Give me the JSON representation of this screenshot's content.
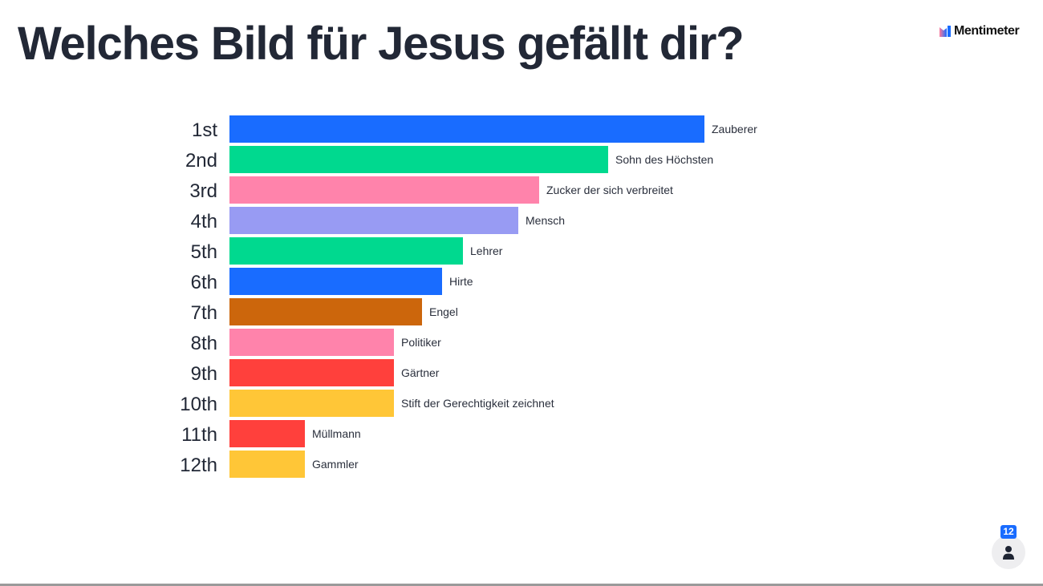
{
  "header": {
    "title": "Welches Bild für Jesus gefällt dir?",
    "brand": "Mentimeter"
  },
  "participants": {
    "count": "12",
    "icon": "person-icon"
  },
  "colors": {
    "blue": "#196cff",
    "green": "#00d98f",
    "pink": "#ff83ab",
    "lavender": "#989bf3",
    "orange": "#cc660c",
    "red": "#ff403c",
    "yellow": "#ffc637"
  },
  "chart_data": {
    "type": "bar",
    "orientation": "horizontal",
    "title": "Welches Bild für Jesus gefällt dir?",
    "xlabel": "",
    "ylabel": "",
    "value_units": "relative score (top = 100)",
    "xlim": [
      0,
      100
    ],
    "grid": false,
    "legend": "none",
    "categories": [
      "1st",
      "2nd",
      "3rd",
      "4th",
      "5th",
      "6th",
      "7th",
      "8th",
      "9th",
      "10th",
      "11th",
      "12th"
    ],
    "labels": [
      "Zauberer",
      "Sohn des Höchsten",
      "Zucker der sich verbreitet",
      "Mensch",
      "Lehrer",
      "Hirte",
      "Engel",
      "Politiker",
      "Gärtner",
      "Stift der Gerechtigkeit zeichnet",
      "Müllmann",
      "Gammler"
    ],
    "values": [
      100,
      79.7,
      65.2,
      60.8,
      49.2,
      44.8,
      40.5,
      34.6,
      34.6,
      34.6,
      15.9,
      15.9
    ],
    "colors": [
      "#196cff",
      "#00d98f",
      "#ff83ab",
      "#989bf3",
      "#00d98f",
      "#196cff",
      "#cc660c",
      "#ff83ab",
      "#ff403c",
      "#ffc637",
      "#ff403c",
      "#ffc637"
    ]
  }
}
